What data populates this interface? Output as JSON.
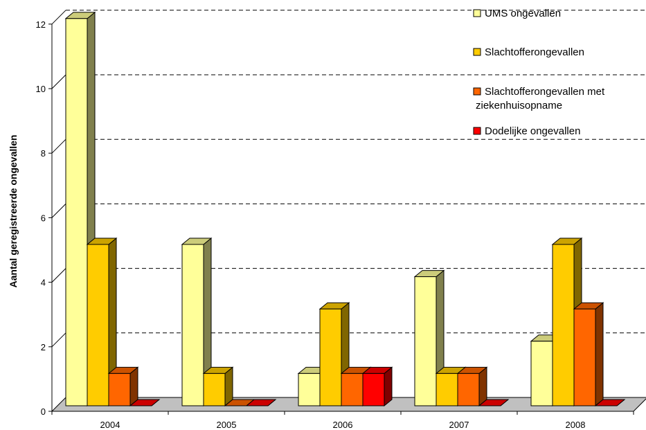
{
  "chart_data": {
    "type": "bar",
    "categories": [
      "2004",
      "2005",
      "2006",
      "2007",
      "2008"
    ],
    "series": [
      {
        "name": "UMS ongevallen",
        "values": [
          12,
          5,
          1,
          4,
          2
        ],
        "color": "#FFFF99"
      },
      {
        "name": "Slachtofferongevallen",
        "values": [
          5,
          1,
          3,
          1,
          5
        ],
        "color": "#FFCC00"
      },
      {
        "name": "Slachtofferongevallen met ziekenhuisopname",
        "values": [
          1,
          0,
          1,
          1,
          3
        ],
        "color": "#FF6600"
      },
      {
        "name": "Dodelijke ongevallen",
        "values": [
          0,
          0,
          1,
          0,
          0
        ],
        "color": "#FF0000"
      }
    ],
    "title": "",
    "xlabel": "",
    "ylabel": "Aantal geregistreerde ongevallen",
    "ylim": [
      0,
      12
    ],
    "yticks": [
      "0",
      "2",
      "4",
      "6",
      "8",
      "10",
      "12"
    ],
    "grid": true,
    "legend": "top-right",
    "three_d": true
  }
}
